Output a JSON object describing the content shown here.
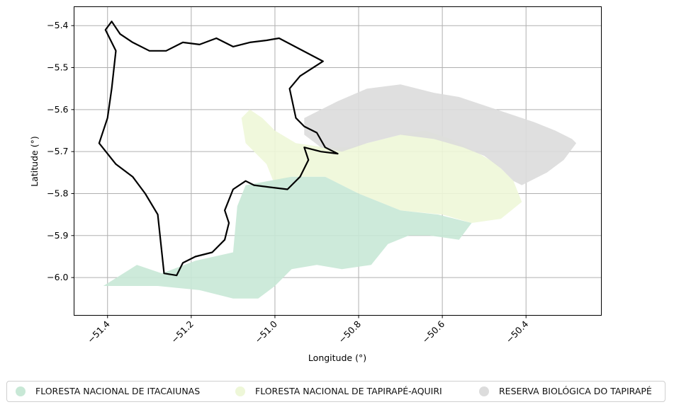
{
  "map": {
    "xlabel": "Longitude (°)",
    "ylabel": "Latitude (°)",
    "xlim": [
      -51.48,
      -50.22
    ],
    "ylim": [
      -6.09,
      -5.355
    ],
    "xticks": [
      {
        "value": -51.4,
        "label": "−51.4"
      },
      {
        "value": -51.2,
        "label": "−51.2"
      },
      {
        "value": -51.0,
        "label": "−51.0"
      },
      {
        "value": -50.8,
        "label": "−50.8"
      },
      {
        "value": -50.6,
        "label": "−50.6"
      },
      {
        "value": -50.4,
        "label": "−50.4"
      }
    ],
    "yticks": [
      {
        "value": -5.4,
        "label": "−5.4"
      },
      {
        "value": -5.5,
        "label": "−5.5"
      },
      {
        "value": -5.6,
        "label": "−5.6"
      },
      {
        "value": -5.7,
        "label": "−5.7"
      },
      {
        "value": -5.8,
        "label": "−5.8"
      },
      {
        "value": -5.9,
        "label": "−5.9"
      },
      {
        "value": -6.0,
        "label": "−6.0"
      }
    ],
    "grid": true,
    "legend_position": "bottom-center"
  },
  "legend": {
    "items": [
      {
        "label": "FLORESTA NACIONAL DE ITACAIUNAS",
        "color": "#c8e8d6"
      },
      {
        "label": "FLORESTA NACIONAL DE TAPIRAPÉ-AQUIRI",
        "color": "#eef7d8"
      },
      {
        "label": "RESERVA BIOLÓGICA DO TAPIRAPÉ",
        "color": "#dcdcdc"
      }
    ]
  },
  "areas": {
    "itacaiunas": {
      "name": "FLORESTA NACIONAL DE ITACAIUNAS",
      "color": "#c8e8d6",
      "coords": [
        [
          -51.41,
          -6.02
        ],
        [
          -51.33,
          -5.97
        ],
        [
          -51.27,
          -5.99
        ],
        [
          -51.19,
          -5.96
        ],
        [
          -51.1,
          -5.94
        ],
        [
          -51.09,
          -5.83
        ],
        [
          -51.07,
          -5.78
        ],
        [
          -50.96,
          -5.76
        ],
        [
          -50.88,
          -5.76
        ],
        [
          -50.8,
          -5.8
        ],
        [
          -50.7,
          -5.84
        ],
        [
          -50.61,
          -5.85
        ],
        [
          -50.53,
          -5.87
        ],
        [
          -50.56,
          -5.91
        ],
        [
          -50.63,
          -5.9
        ],
        [
          -50.68,
          -5.9
        ],
        [
          -50.73,
          -5.92
        ],
        [
          -50.77,
          -5.97
        ],
        [
          -50.84,
          -5.98
        ],
        [
          -50.9,
          -5.97
        ],
        [
          -50.96,
          -5.98
        ],
        [
          -51.0,
          -6.02
        ],
        [
          -51.04,
          -6.05
        ],
        [
          -51.1,
          -6.05
        ],
        [
          -51.18,
          -6.03
        ],
        [
          -51.28,
          -6.02
        ],
        [
          -51.38,
          -6.02
        ],
        [
          -51.41,
          -6.02
        ]
      ]
    },
    "tapirape_aquiri": {
      "name": "FLORESTA NACIONAL DE TAPIRAPÉ-AQUIRI",
      "color": "#eef7d8",
      "coords": [
        [
          -51.06,
          -5.6
        ],
        [
          -51.03,
          -5.62
        ],
        [
          -51.0,
          -5.65
        ],
        [
          -50.95,
          -5.68
        ],
        [
          -50.88,
          -5.69
        ],
        [
          -50.82,
          -5.69
        ],
        [
          -50.78,
          -5.68
        ],
        [
          -50.7,
          -5.66
        ],
        [
          -50.64,
          -5.65
        ],
        [
          -50.58,
          -5.67
        ],
        [
          -50.52,
          -5.7
        ],
        [
          -50.47,
          -5.73
        ],
        [
          -50.43,
          -5.77
        ],
        [
          -50.41,
          -5.82
        ],
        [
          -50.46,
          -5.86
        ],
        [
          -50.53,
          -5.87
        ],
        [
          -50.6,
          -5.85
        ],
        [
          -50.7,
          -5.84
        ],
        [
          -50.8,
          -5.8
        ],
        [
          -50.88,
          -5.76
        ],
        [
          -50.96,
          -5.76
        ],
        [
          -51.0,
          -5.78
        ],
        [
          -51.02,
          -5.73
        ],
        [
          -51.07,
          -5.68
        ],
        [
          -51.08,
          -5.62
        ],
        [
          -51.06,
          -5.6
        ]
      ]
    },
    "reserva_tapirape": {
      "name": "RESERVA BIOLÓGICA DO TAPIRAPÉ",
      "color": "#dcdcdc",
      "coords": [
        [
          -50.93,
          -5.62
        ],
        [
          -50.85,
          -5.58
        ],
        [
          -50.78,
          -5.55
        ],
        [
          -50.7,
          -5.54
        ],
        [
          -50.62,
          -5.56
        ],
        [
          -50.56,
          -5.57
        ],
        [
          -50.5,
          -5.59
        ],
        [
          -50.44,
          -5.61
        ],
        [
          -50.38,
          -5.63
        ],
        [
          -50.33,
          -5.65
        ],
        [
          -50.29,
          -5.67
        ],
        [
          -50.28,
          -5.68
        ],
        [
          -50.31,
          -5.72
        ],
        [
          -50.35,
          -5.75
        ],
        [
          -50.41,
          -5.78
        ],
        [
          -50.43,
          -5.77
        ],
        [
          -50.46,
          -5.74
        ],
        [
          -50.5,
          -5.71
        ],
        [
          -50.55,
          -5.69
        ],
        [
          -50.62,
          -5.67
        ],
        [
          -50.7,
          -5.66
        ],
        [
          -50.78,
          -5.68
        ],
        [
          -50.84,
          -5.7
        ],
        [
          -50.89,
          -5.69
        ],
        [
          -50.93,
          -5.66
        ],
        [
          -50.93,
          -5.62
        ]
      ]
    },
    "outline": {
      "coords": [
        [
          -51.405,
          -5.41
        ],
        [
          -51.39,
          -5.39
        ],
        [
          -51.37,
          -5.42
        ],
        [
          -51.34,
          -5.44
        ],
        [
          -51.3,
          -5.46
        ],
        [
          -51.26,
          -5.46
        ],
        [
          -51.22,
          -5.44
        ],
        [
          -51.18,
          -5.445
        ],
        [
          -51.14,
          -5.43
        ],
        [
          -51.1,
          -5.45
        ],
        [
          -51.06,
          -5.44
        ],
        [
          -51.02,
          -5.435
        ],
        [
          -50.99,
          -5.43
        ],
        [
          -50.885,
          -5.485
        ],
        [
          -50.94,
          -5.52
        ],
        [
          -50.965,
          -5.55
        ],
        [
          -50.95,
          -5.62
        ],
        [
          -50.93,
          -5.64
        ],
        [
          -50.9,
          -5.655
        ],
        [
          -50.88,
          -5.69
        ],
        [
          -50.85,
          -5.705
        ],
        [
          -50.89,
          -5.7
        ],
        [
          -50.93,
          -5.69
        ],
        [
          -50.92,
          -5.72
        ],
        [
          -50.94,
          -5.76
        ],
        [
          -50.97,
          -5.79
        ],
        [
          -51.01,
          -5.785
        ],
        [
          -51.05,
          -5.78
        ],
        [
          -51.07,
          -5.77
        ],
        [
          -51.1,
          -5.79
        ],
        [
          -51.12,
          -5.84
        ],
        [
          -51.11,
          -5.87
        ],
        [
          -51.12,
          -5.91
        ],
        [
          -51.15,
          -5.94
        ],
        [
          -51.19,
          -5.95
        ],
        [
          -51.22,
          -5.965
        ],
        [
          -51.235,
          -5.995
        ],
        [
          -51.265,
          -5.99
        ],
        [
          -51.28,
          -5.85
        ],
        [
          -51.31,
          -5.8
        ],
        [
          -51.34,
          -5.76
        ],
        [
          -51.38,
          -5.73
        ],
        [
          -51.42,
          -5.68
        ],
        [
          -51.4,
          -5.62
        ],
        [
          -51.39,
          -5.55
        ],
        [
          -51.38,
          -5.46
        ],
        [
          -51.405,
          -5.41
        ]
      ]
    }
  }
}
